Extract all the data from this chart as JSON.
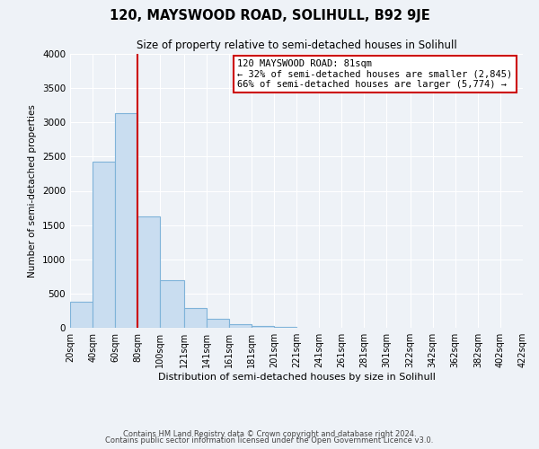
{
  "title": "120, MAYSWOOD ROAD, SOLIHULL, B92 9JE",
  "subtitle": "Size of property relative to semi-detached houses in Solihull",
  "xlabel": "Distribution of semi-detached houses by size in Solihull",
  "ylabel": "Number of semi-detached properties",
  "bin_edges": [
    20,
    40,
    60,
    80,
    100,
    121,
    141,
    161,
    181,
    201,
    221,
    241,
    261,
    281,
    301,
    322,
    342,
    362,
    382,
    402,
    422
  ],
  "bin_heights": [
    375,
    2420,
    3140,
    1630,
    700,
    295,
    130,
    55,
    30,
    10,
    0,
    0,
    0,
    0,
    0,
    0,
    0,
    0,
    0,
    0
  ],
  "bar_color": "#c9ddf0",
  "bar_edge_color": "#7fb3d9",
  "vline_x": 80,
  "vline_color": "#cc0000",
  "ylim": [
    0,
    4000
  ],
  "yticks": [
    0,
    500,
    1000,
    1500,
    2000,
    2500,
    3000,
    3500,
    4000
  ],
  "annotation_title": "120 MAYSWOOD ROAD: 81sqm",
  "annotation_line2": "← 32% of semi-detached houses are smaller (2,845)",
  "annotation_line3": "66% of semi-detached houses are larger (5,774) →",
  "annotation_box_color": "#ffffff",
  "annotation_box_edge": "#cc0000",
  "footer_line1": "Contains HM Land Registry data © Crown copyright and database right 2024.",
  "footer_line2": "Contains public sector information licensed under the Open Government Licence v3.0.",
  "background_color": "#eef2f7",
  "grid_color": "#ffffff",
  "tick_labels": [
    "20sqm",
    "40sqm",
    "60sqm",
    "80sqm",
    "100sqm",
    "121sqm",
    "141sqm",
    "161sqm",
    "181sqm",
    "201sqm",
    "221sqm",
    "241sqm",
    "261sqm",
    "281sqm",
    "301sqm",
    "322sqm",
    "342sqm",
    "362sqm",
    "382sqm",
    "402sqm",
    "422sqm"
  ]
}
